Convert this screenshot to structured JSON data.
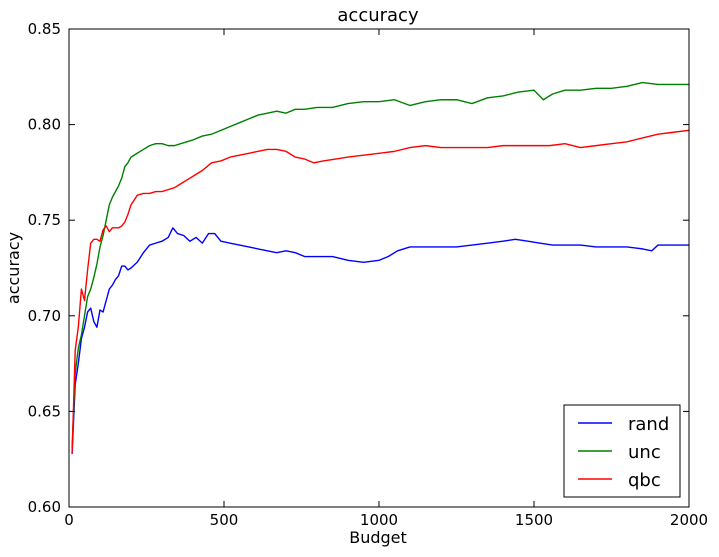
{
  "chart_data": {
    "type": "line",
    "title": "accuracy",
    "xlabel": "Budget",
    "ylabel": "accuracy",
    "xlim": [
      0,
      2000
    ],
    "ylim": [
      0.6,
      0.85
    ],
    "x_ticks": [
      0,
      500,
      1000,
      1500,
      2000
    ],
    "y_ticks": [
      0.6,
      0.65,
      0.7,
      0.75,
      0.8,
      0.85
    ],
    "x_tick_labels": [
      "0",
      "500",
      "1000",
      "1500",
      "2000"
    ],
    "y_tick_labels": [
      "0.60",
      "0.65",
      "0.70",
      "0.75",
      "0.80",
      "0.85"
    ],
    "grid": false,
    "legend_position": "lower-right",
    "series": [
      {
        "name": "rand",
        "color": "#0000ff",
        "points": [
          [
            10,
            0.628
          ],
          [
            20,
            0.664
          ],
          [
            30,
            0.675
          ],
          [
            40,
            0.688
          ],
          [
            50,
            0.694
          ],
          [
            60,
            0.702
          ],
          [
            70,
            0.704
          ],
          [
            80,
            0.697
          ],
          [
            90,
            0.694
          ],
          [
            100,
            0.703
          ],
          [
            110,
            0.702
          ],
          [
            120,
            0.708
          ],
          [
            130,
            0.714
          ],
          [
            140,
            0.716
          ],
          [
            150,
            0.719
          ],
          [
            160,
            0.721
          ],
          [
            170,
            0.726
          ],
          [
            180,
            0.726
          ],
          [
            190,
            0.724
          ],
          [
            200,
            0.725
          ],
          [
            220,
            0.728
          ],
          [
            240,
            0.733
          ],
          [
            260,
            0.737
          ],
          [
            280,
            0.738
          ],
          [
            300,
            0.739
          ],
          [
            320,
            0.741
          ],
          [
            335,
            0.746
          ],
          [
            350,
            0.743
          ],
          [
            370,
            0.742
          ],
          [
            390,
            0.739
          ],
          [
            410,
            0.741
          ],
          [
            430,
            0.738
          ],
          [
            450,
            0.743
          ],
          [
            470,
            0.743
          ],
          [
            490,
            0.739
          ],
          [
            520,
            0.738
          ],
          [
            550,
            0.737
          ],
          [
            580,
            0.736
          ],
          [
            610,
            0.735
          ],
          [
            640,
            0.734
          ],
          [
            670,
            0.733
          ],
          [
            700,
            0.734
          ],
          [
            730,
            0.733
          ],
          [
            760,
            0.731
          ],
          [
            800,
            0.731
          ],
          [
            850,
            0.731
          ],
          [
            900,
            0.729
          ],
          [
            950,
            0.728
          ],
          [
            1000,
            0.729
          ],
          [
            1030,
            0.731
          ],
          [
            1060,
            0.734
          ],
          [
            1100,
            0.736
          ],
          [
            1150,
            0.736
          ],
          [
            1200,
            0.736
          ],
          [
            1250,
            0.736
          ],
          [
            1300,
            0.737
          ],
          [
            1350,
            0.738
          ],
          [
            1400,
            0.739
          ],
          [
            1440,
            0.74
          ],
          [
            1480,
            0.739
          ],
          [
            1520,
            0.738
          ],
          [
            1560,
            0.737
          ],
          [
            1600,
            0.737
          ],
          [
            1650,
            0.737
          ],
          [
            1700,
            0.736
          ],
          [
            1750,
            0.736
          ],
          [
            1800,
            0.736
          ],
          [
            1850,
            0.735
          ],
          [
            1880,
            0.734
          ],
          [
            1900,
            0.737
          ],
          [
            1950,
            0.737
          ],
          [
            2000,
            0.737
          ]
        ]
      },
      {
        "name": "unc",
        "color": "#008000",
        "points": [
          [
            10,
            0.631
          ],
          [
            20,
            0.67
          ],
          [
            30,
            0.683
          ],
          [
            40,
            0.69
          ],
          [
            50,
            0.7
          ],
          [
            60,
            0.71
          ],
          [
            70,
            0.714
          ],
          [
            80,
            0.72
          ],
          [
            90,
            0.727
          ],
          [
            100,
            0.736
          ],
          [
            110,
            0.742
          ],
          [
            120,
            0.75
          ],
          [
            130,
            0.758
          ],
          [
            140,
            0.762
          ],
          [
            150,
            0.765
          ],
          [
            160,
            0.768
          ],
          [
            170,
            0.772
          ],
          [
            180,
            0.778
          ],
          [
            190,
            0.78
          ],
          [
            200,
            0.783
          ],
          [
            220,
            0.785
          ],
          [
            240,
            0.787
          ],
          [
            260,
            0.789
          ],
          [
            280,
            0.79
          ],
          [
            300,
            0.79
          ],
          [
            320,
            0.789
          ],
          [
            340,
            0.789
          ],
          [
            360,
            0.79
          ],
          [
            380,
            0.791
          ],
          [
            400,
            0.792
          ],
          [
            430,
            0.794
          ],
          [
            460,
            0.795
          ],
          [
            490,
            0.797
          ],
          [
            520,
            0.799
          ],
          [
            550,
            0.801
          ],
          [
            580,
            0.803
          ],
          [
            610,
            0.805
          ],
          [
            640,
            0.806
          ],
          [
            670,
            0.807
          ],
          [
            700,
            0.806
          ],
          [
            730,
            0.808
          ],
          [
            760,
            0.808
          ],
          [
            800,
            0.809
          ],
          [
            850,
            0.809
          ],
          [
            900,
            0.811
          ],
          [
            950,
            0.812
          ],
          [
            1000,
            0.812
          ],
          [
            1050,
            0.813
          ],
          [
            1100,
            0.81
          ],
          [
            1150,
            0.812
          ],
          [
            1200,
            0.813
          ],
          [
            1250,
            0.813
          ],
          [
            1300,
            0.811
          ],
          [
            1350,
            0.814
          ],
          [
            1400,
            0.815
          ],
          [
            1450,
            0.817
          ],
          [
            1500,
            0.818
          ],
          [
            1530,
            0.813
          ],
          [
            1560,
            0.816
          ],
          [
            1600,
            0.818
          ],
          [
            1650,
            0.818
          ],
          [
            1700,
            0.819
          ],
          [
            1750,
            0.819
          ],
          [
            1800,
            0.82
          ],
          [
            1850,
            0.822
          ],
          [
            1900,
            0.821
          ],
          [
            1950,
            0.821
          ],
          [
            2000,
            0.821
          ]
        ]
      },
      {
        "name": "qbc",
        "color": "#ff0000",
        "points": [
          [
            10,
            0.628
          ],
          [
            20,
            0.682
          ],
          [
            30,
            0.694
          ],
          [
            40,
            0.714
          ],
          [
            50,
            0.708
          ],
          [
            60,
            0.724
          ],
          [
            70,
            0.738
          ],
          [
            80,
            0.74
          ],
          [
            90,
            0.74
          ],
          [
            100,
            0.739
          ],
          [
            110,
            0.745
          ],
          [
            120,
            0.747
          ],
          [
            130,
            0.744
          ],
          [
            140,
            0.746
          ],
          [
            150,
            0.746
          ],
          [
            160,
            0.746
          ],
          [
            170,
            0.747
          ],
          [
            180,
            0.749
          ],
          [
            190,
            0.753
          ],
          [
            200,
            0.758
          ],
          [
            220,
            0.763
          ],
          [
            240,
            0.764
          ],
          [
            260,
            0.764
          ],
          [
            280,
            0.765
          ],
          [
            300,
            0.765
          ],
          [
            320,
            0.766
          ],
          [
            340,
            0.767
          ],
          [
            360,
            0.769
          ],
          [
            380,
            0.771
          ],
          [
            400,
            0.773
          ],
          [
            430,
            0.776
          ],
          [
            460,
            0.78
          ],
          [
            490,
            0.781
          ],
          [
            520,
            0.783
          ],
          [
            550,
            0.784
          ],
          [
            580,
            0.785
          ],
          [
            610,
            0.786
          ],
          [
            640,
            0.787
          ],
          [
            670,
            0.787
          ],
          [
            700,
            0.786
          ],
          [
            730,
            0.783
          ],
          [
            760,
            0.782
          ],
          [
            790,
            0.78
          ],
          [
            820,
            0.781
          ],
          [
            860,
            0.782
          ],
          [
            900,
            0.783
          ],
          [
            950,
            0.784
          ],
          [
            1000,
            0.785
          ],
          [
            1050,
            0.786
          ],
          [
            1100,
            0.788
          ],
          [
            1150,
            0.789
          ],
          [
            1200,
            0.788
          ],
          [
            1250,
            0.788
          ],
          [
            1300,
            0.788
          ],
          [
            1350,
            0.788
          ],
          [
            1400,
            0.789
          ],
          [
            1450,
            0.789
          ],
          [
            1500,
            0.789
          ],
          [
            1550,
            0.789
          ],
          [
            1600,
            0.79
          ],
          [
            1650,
            0.788
          ],
          [
            1700,
            0.789
          ],
          [
            1750,
            0.79
          ],
          [
            1800,
            0.791
          ],
          [
            1850,
            0.793
          ],
          [
            1900,
            0.795
          ],
          [
            1950,
            0.796
          ],
          [
            2000,
            0.797
          ]
        ]
      }
    ]
  }
}
